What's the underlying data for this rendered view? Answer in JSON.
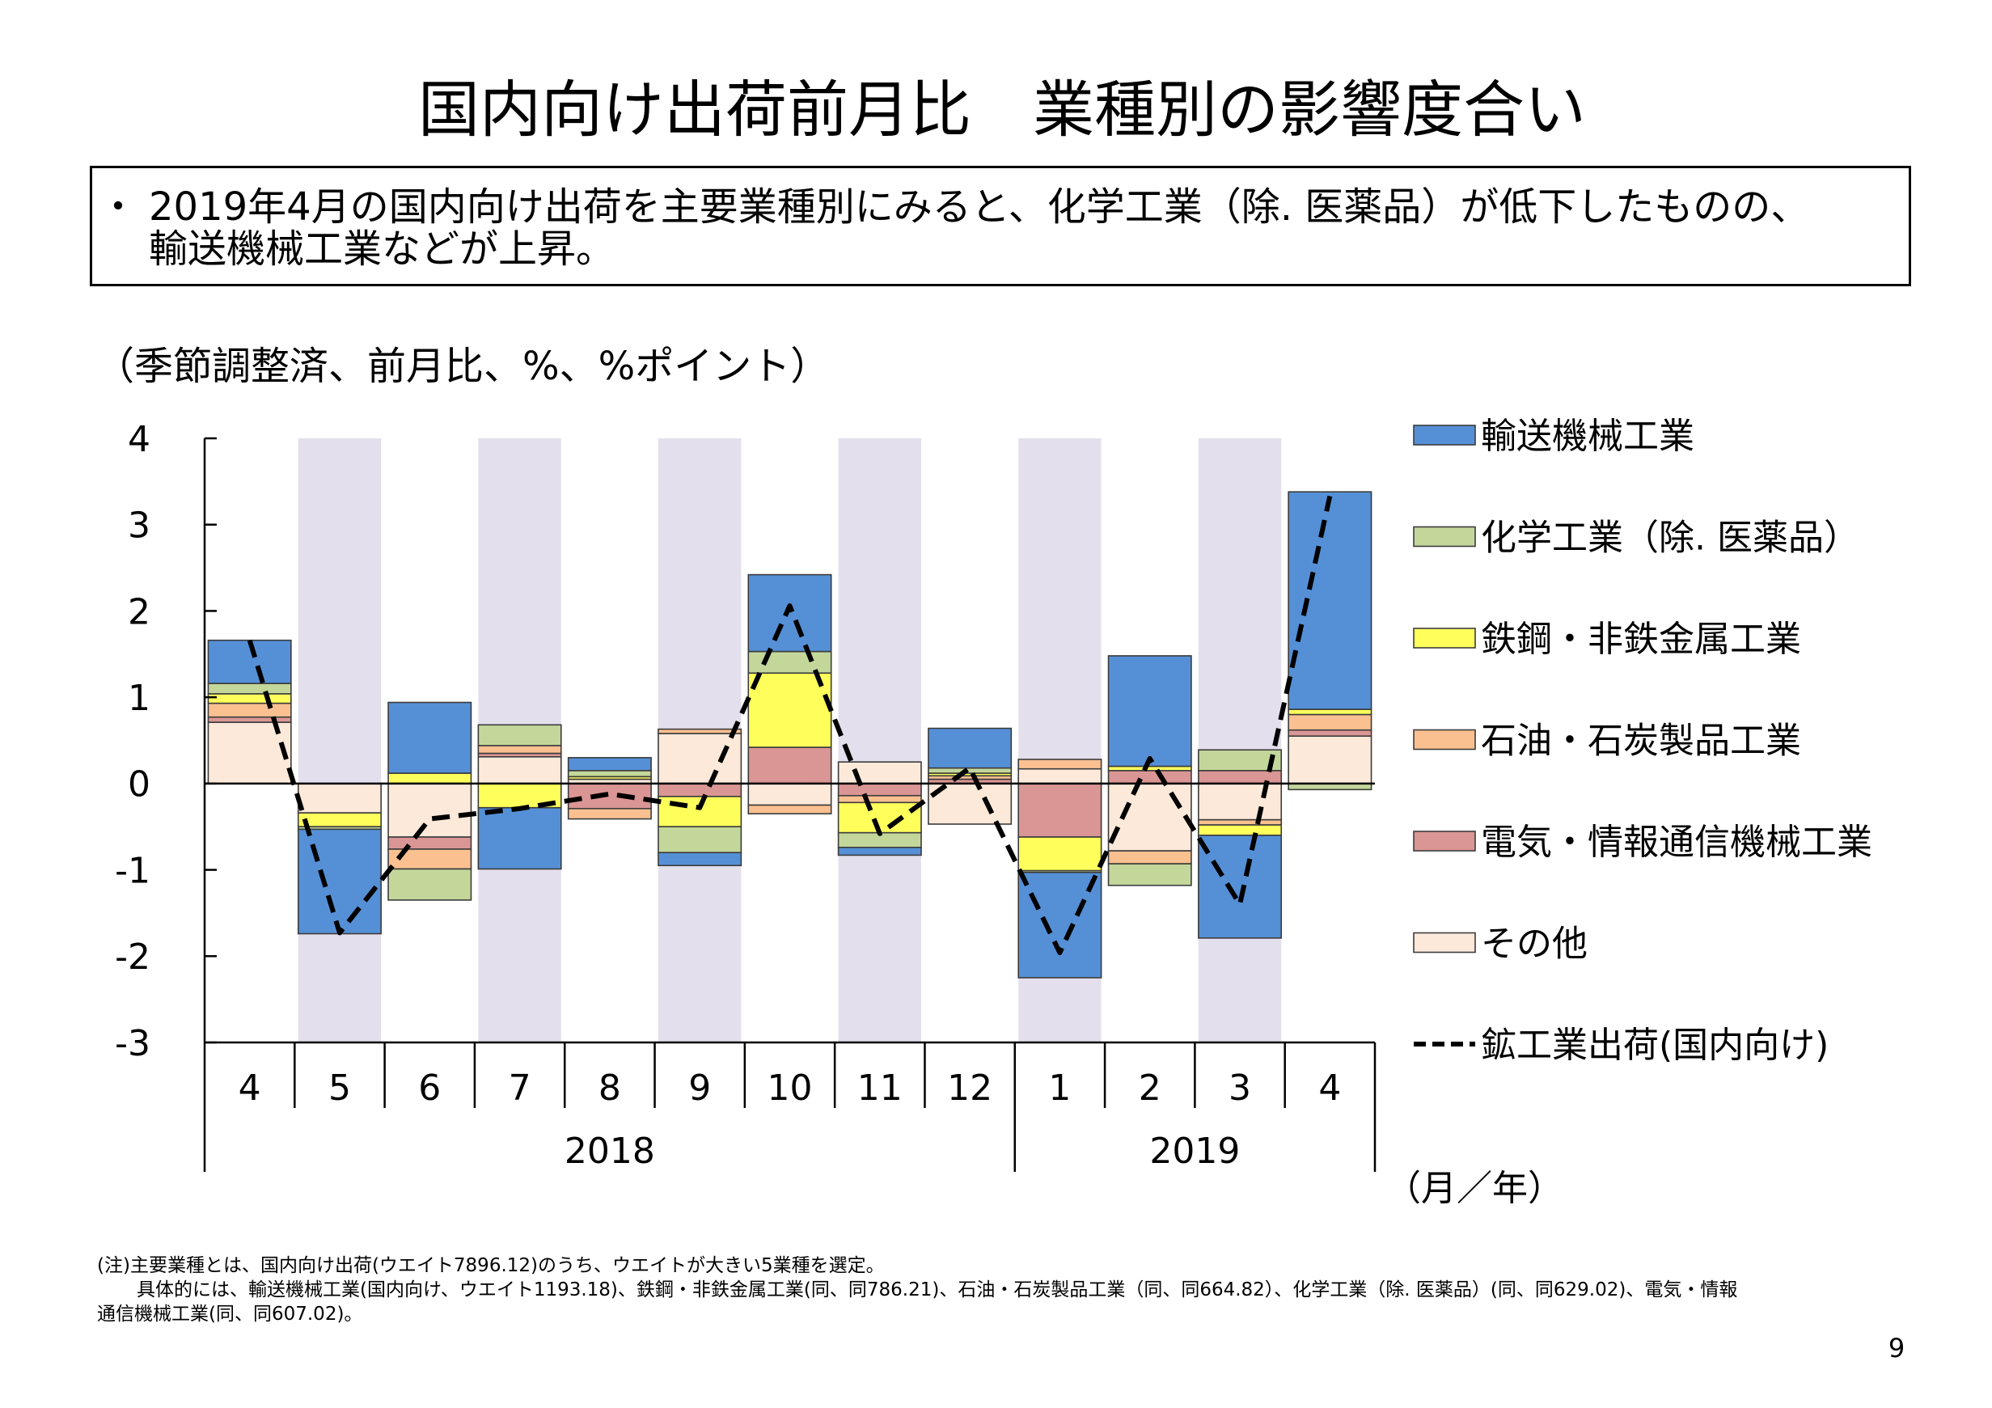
{
  "page": {
    "title": "国内向け出荷前月比　業種別の影響度合い",
    "summary": {
      "bullet": "・",
      "lines": [
        "2019年4月の国内向け出荷を主要業種別にみると、化学工業（除. 医薬品）が低下したものの、",
        "輸送機械工業などが上昇。"
      ]
    },
    "footnotes": [
      "(注)主要業種とは、国内向け出荷(ウエイト7896.12)のうち、ウエイトが大きい5業種を選定。",
      "具体的には、輸送機械工業(国内向け、ウエイト1193.18)、鉄鋼・非鉄金属工業(同、同786.21)、石油・石炭製品工業（同、同664.82）、化学工業（除. 医薬品）(同、同629.02)、電気・情報",
      "通信機械工業(同、同607.02)。"
    ],
    "page_number": "9"
  },
  "chart_data": {
    "type": "bar",
    "stacked": true,
    "ylabel": "（季節調整済、前月比、%、%ポイント）",
    "xlabel": "（月／年）",
    "ylim": [
      -3,
      4
    ],
    "yticks": [
      4,
      3,
      2,
      1,
      0,
      -1,
      -2,
      -3
    ],
    "grid": false,
    "legend_position": "right",
    "categories": [
      "4",
      "5",
      "6",
      "7",
      "8",
      "9",
      "10",
      "11",
      "12",
      "1",
      "2",
      "3",
      "4"
    ],
    "year_groups": [
      {
        "label": "2018",
        "count": 9
      },
      {
        "label": "2019",
        "count": 4
      }
    ],
    "shaded": [
      false,
      true,
      false,
      true,
      false,
      true,
      false,
      true,
      false,
      true,
      false,
      true,
      false
    ],
    "shade_color": "#e4dfec",
    "series": [
      {
        "name": "輸送機械工業",
        "type": "bar",
        "color": "#5590d6",
        "values": [
          0.5,
          -1.21,
          0.82,
          -0.71,
          0.15,
          -0.15,
          0.89,
          -0.09,
          0.46,
          -1.22,
          1.28,
          -1.19,
          2.52
        ]
      },
      {
        "name": "化学工業（除. 医薬品）",
        "type": "bar",
        "color": "#c4d79b",
        "values": [
          0.12,
          -0.03,
          -0.36,
          0.24,
          0.07,
          -0.3,
          0.25,
          -0.17,
          0.06,
          -0.02,
          -0.25,
          0.24,
          -0.07
        ]
      },
      {
        "name": "鉄鋼・非鉄金属工業",
        "type": "bar",
        "color": "#ffff5c",
        "values": [
          0.11,
          -0.16,
          0.12,
          -0.28,
          0.03,
          -0.35,
          0.86,
          -0.35,
          0.03,
          -0.39,
          0.05,
          -0.12,
          0.06
        ]
      },
      {
        "name": "石油・石炭製品工業",
        "type": "bar",
        "color": "#fac090",
        "values": [
          0.16,
          0.0,
          -0.23,
          0.09,
          -0.12,
          0.05,
          -0.1,
          -0.08,
          0.04,
          0.11,
          -0.15,
          -0.06,
          0.18
        ]
      },
      {
        "name": "電気・情報通信機械工業",
        "type": "bar",
        "color": "#da9694",
        "values": [
          0.06,
          0.0,
          -0.14,
          0.04,
          -0.29,
          -0.15,
          0.42,
          -0.14,
          0.05,
          -0.62,
          0.15,
          0.15,
          0.07
        ]
      },
      {
        "name": "その他",
        "type": "bar",
        "color": "#fde9d9",
        "values": [
          0.71,
          -0.34,
          -0.62,
          0.31,
          0.05,
          0.58,
          -0.25,
          0.25,
          -0.47,
          0.17,
          -0.78,
          -0.42,
          0.55
        ]
      },
      {
        "name": "鉱工業出荷(国内向け)",
        "type": "line",
        "style": "dashed",
        "color": "#000000",
        "values": [
          1.66,
          -1.73,
          -0.41,
          -0.29,
          -0.12,
          -0.28,
          2.06,
          -0.58,
          0.18,
          -1.96,
          0.29,
          -1.4,
          3.33
        ]
      }
    ]
  }
}
